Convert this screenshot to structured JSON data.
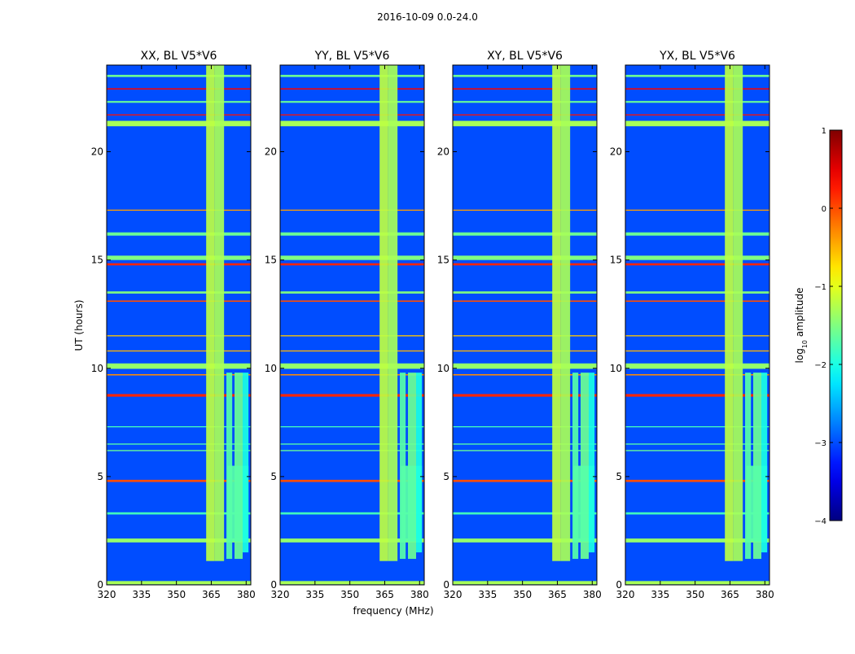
{
  "figure": {
    "suptitle": "2016-10-09 0.0-24.0",
    "xlabel": "frequency (MHz)",
    "ylabel": "UT (hours)",
    "colorbar_label_prefix": "log",
    "colorbar_label_sub": "10",
    "colorbar_label_suffix": " amplitude"
  },
  "chart_data": {
    "type": "heatmap",
    "colormap": "jet",
    "title": "2016-10-09 0.0-24.0",
    "xlabel": "frequency (MHz)",
    "ylabel": "UT (hours)",
    "xlim": [
      320,
      382
    ],
    "ylim": [
      0,
      24
    ],
    "x_ticks": [
      320,
      335,
      350,
      365,
      380
    ],
    "x_tick_labels": [
      "320",
      "335",
      "350",
      "365",
      "380"
    ],
    "y_ticks": [
      0,
      5,
      10,
      15,
      20
    ],
    "y_tick_labels": [
      "0",
      "5",
      "10",
      "15",
      "20"
    ],
    "panels": [
      {
        "title": "XX, BL V5*V6"
      },
      {
        "title": "YY, BL V5*V6"
      },
      {
        "title": "XY, BL V5*V6"
      },
      {
        "title": "YX, BL V5*V6"
      }
    ],
    "background_level": -3.0,
    "rfi_bands": [
      {
        "f0": 362.8,
        "f1": 366.5,
        "level": -1.2,
        "t0": 1.1,
        "t1": 24
      },
      {
        "f0": 366.5,
        "f1": 370.5,
        "level": -1.3,
        "t0": 1.1,
        "t1": 24
      },
      {
        "f0": 371.5,
        "f1": 374.0,
        "level": -1.7,
        "t0": 1.2,
        "t1": 9.8
      },
      {
        "f0": 375.0,
        "f1": 378.5,
        "level": -1.6,
        "t0": 1.2,
        "t1": 9.8
      },
      {
        "f0": 372.0,
        "f1": 381.0,
        "level": -1.7,
        "t0": 2.0,
        "t1": 5.5
      },
      {
        "f0": 378.5,
        "f1": 381.0,
        "level": -2.0,
        "t0": 1.5,
        "t1": 9.8
      }
    ],
    "rfi_times": [
      {
        "t": 0.1,
        "w": 0.15,
        "level": -1.3
      },
      {
        "t": 2.05,
        "w": 0.18,
        "level": -1.4
      },
      {
        "t": 3.3,
        "w": 0.1,
        "level": -1.8
      },
      {
        "t": 4.8,
        "w": 0.1,
        "level": 0.0
      },
      {
        "t": 6.2,
        "w": 0.05,
        "level": -1.6
      },
      {
        "t": 6.5,
        "w": 0.05,
        "level": -1.7
      },
      {
        "t": 7.3,
        "w": 0.05,
        "level": -1.8
      },
      {
        "t": 8.75,
        "w": 0.12,
        "level": 0.2
      },
      {
        "t": 9.7,
        "w": 0.06,
        "level": -0.3
      },
      {
        "t": 10.1,
        "w": 0.25,
        "level": -1.4
      },
      {
        "t": 10.8,
        "w": 0.05,
        "level": -0.5
      },
      {
        "t": 11.5,
        "w": 0.05,
        "level": -0.6
      },
      {
        "t": 13.1,
        "w": 0.06,
        "level": 0.0
      },
      {
        "t": 13.5,
        "w": 0.1,
        "level": -1.5
      },
      {
        "t": 14.8,
        "w": 0.1,
        "level": 0.2
      },
      {
        "t": 15.1,
        "w": 0.2,
        "level": -1.5
      },
      {
        "t": 16.2,
        "w": 0.15,
        "level": -1.6
      },
      {
        "t": 17.3,
        "w": 0.05,
        "level": -0.4
      },
      {
        "t": 21.3,
        "w": 0.25,
        "level": -1.3
      },
      {
        "t": 21.7,
        "w": 0.05,
        "level": 0.3
      },
      {
        "t": 22.3,
        "w": 0.08,
        "level": -1.6
      },
      {
        "t": 22.9,
        "w": 0.06,
        "level": 0.4
      },
      {
        "t": 23.5,
        "w": 0.1,
        "level": -1.6
      }
    ],
    "colorbar": {
      "range": [
        -4,
        1
      ],
      "ticks": [
        -4,
        -3,
        -2,
        -1,
        0,
        1
      ],
      "tick_labels": [
        "−4",
        "−3",
        "−2",
        "−1",
        "0",
        "1"
      ]
    }
  }
}
